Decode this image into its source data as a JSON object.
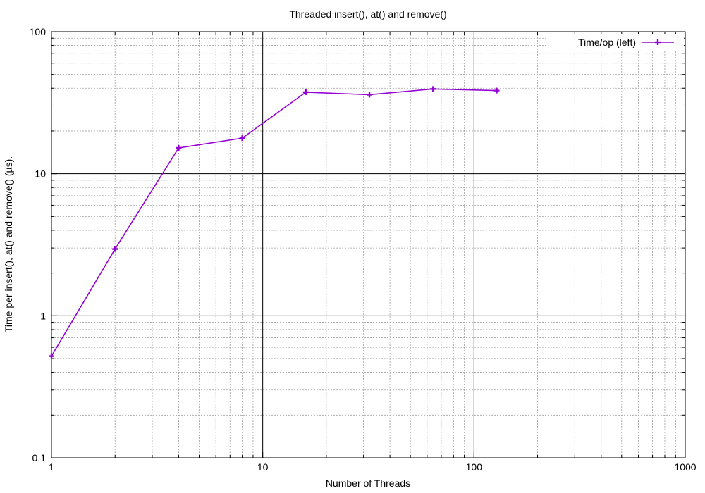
{
  "chart_data": {
    "type": "line",
    "title": "Threaded insert(), at() and remove()",
    "xlabel": "Number of Threads",
    "ylabel": "Time per insert(), at() and remove() (µs).",
    "x_scale": "log",
    "y_scale": "log",
    "xlim": [
      1,
      1000
    ],
    "ylim": [
      0.1,
      100
    ],
    "x_ticks": [
      {
        "value": 1,
        "label": "1"
      },
      {
        "value": 10,
        "label": "10"
      },
      {
        "value": 100,
        "label": "100"
      },
      {
        "value": 1000,
        "label": "1000"
      }
    ],
    "y_ticks": [
      {
        "value": 0.1,
        "label": "0.1"
      },
      {
        "value": 1,
        "label": "1"
      },
      {
        "value": 10,
        "label": "10"
      },
      {
        "value": 100,
        "label": "100"
      }
    ],
    "grid": true,
    "legend_position": "top-right",
    "series": [
      {
        "name": "Time/op (left)",
        "color": "#9400d3",
        "marker": "plus",
        "x": [
          1,
          2,
          4,
          8,
          16,
          32,
          64,
          128
        ],
        "y": [
          0.52,
          2.95,
          15.2,
          17.8,
          37.5,
          36.0,
          39.5,
          38.5
        ]
      }
    ]
  }
}
